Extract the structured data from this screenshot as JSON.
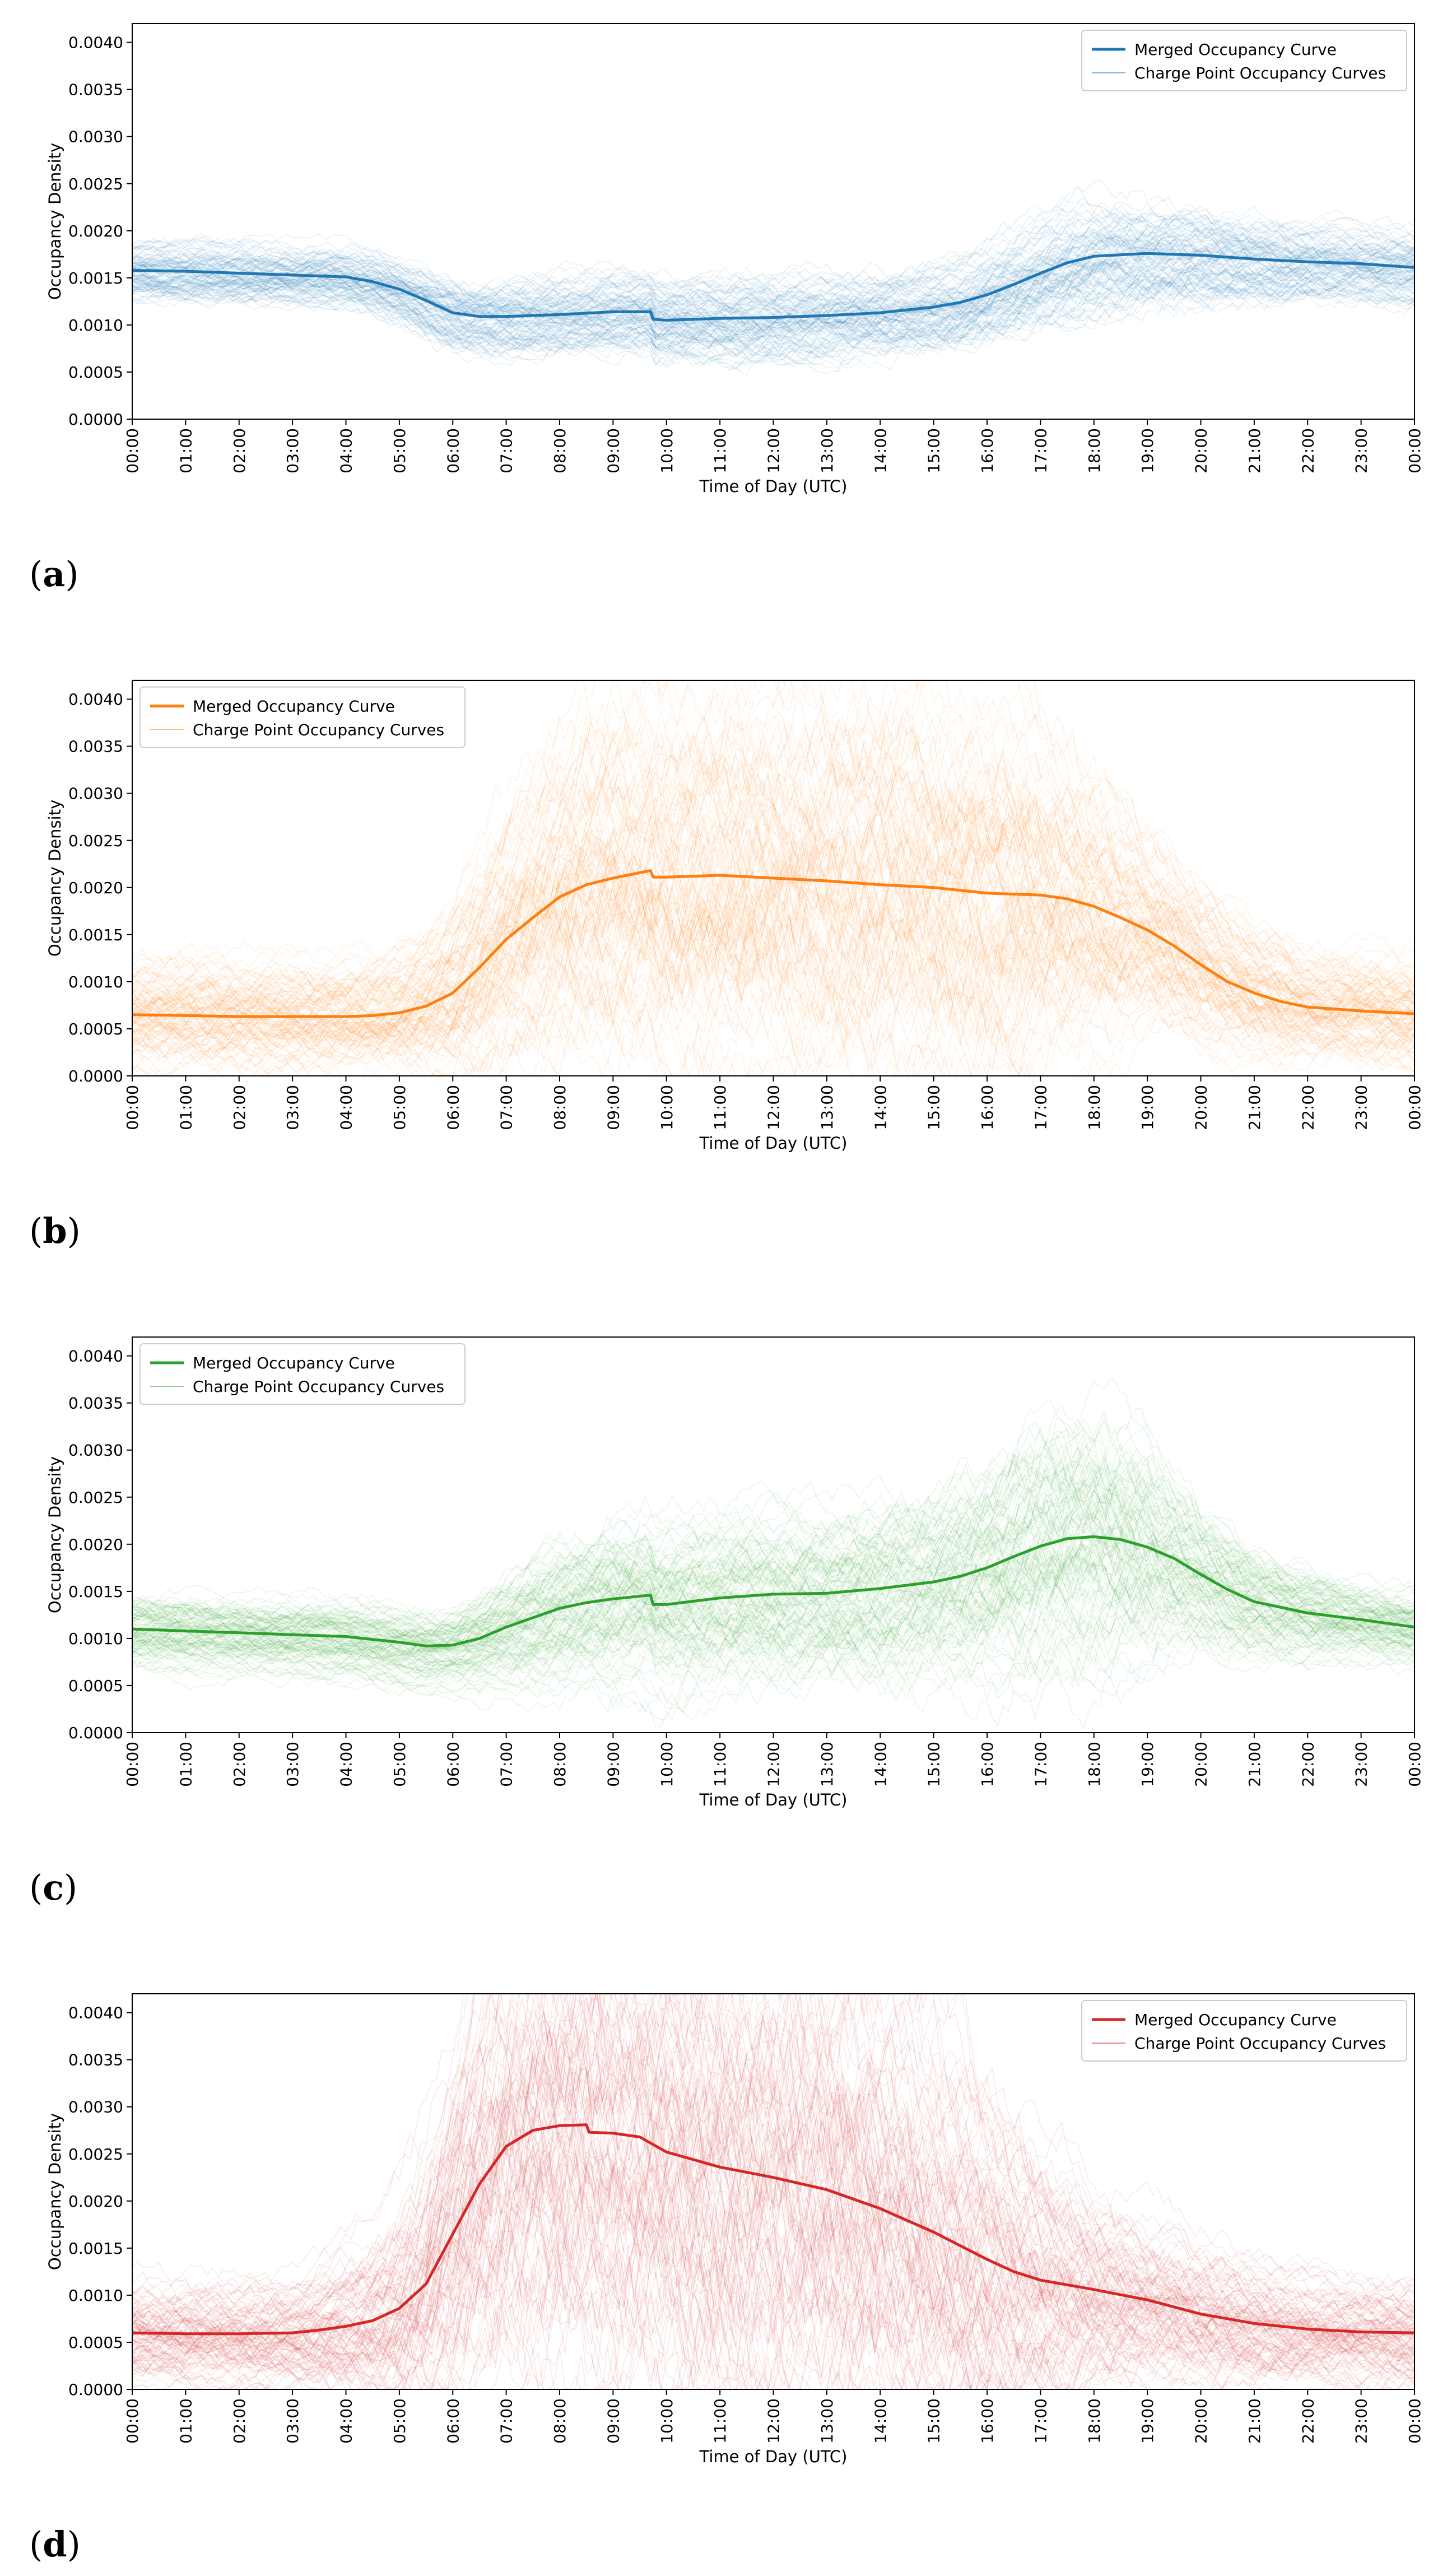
{
  "chart_data": [
    {
      "type": "line",
      "panel_label": "a",
      "xlabel": "Time of Day (UTC)",
      "ylabel": "Occupancy Density",
      "x_ticks": [
        "00:00",
        "01:00",
        "02:00",
        "03:00",
        "04:00",
        "05:00",
        "06:00",
        "07:00",
        "08:00",
        "09:00",
        "10:00",
        "11:00",
        "12:00",
        "13:00",
        "14:00",
        "15:00",
        "16:00",
        "17:00",
        "18:00",
        "19:00",
        "20:00",
        "21:00",
        "22:00",
        "23:00",
        "00:00"
      ],
      "xlim": [
        0,
        24
      ],
      "y_ticks": [
        "0.0000",
        "0.0005",
        "0.0010",
        "0.0015",
        "0.0020",
        "0.0025",
        "0.0030",
        "0.0035",
        "0.0040"
      ],
      "ylim": [
        0,
        0.0042
      ],
      "grid": false,
      "legend_position": "top-right",
      "color": "#1f77b4",
      "series": [
        {
          "name": "Merged Occupancy Curve",
          "x": [
            0,
            1,
            2,
            3,
            4,
            4.5,
            5,
            5.5,
            6,
            6.5,
            7,
            8,
            9,
            9.7,
            9.75,
            10,
            11,
            12,
            13,
            14,
            15,
            15.5,
            16,
            16.5,
            17,
            17.5,
            18,
            19,
            20,
            21,
            22,
            23,
            24
          ],
          "y": [
            0.00158,
            0.00157,
            0.00155,
            0.00153,
            0.00151,
            0.00146,
            0.00138,
            0.00126,
            0.00113,
            0.00109,
            0.00109,
            0.00111,
            0.00114,
            0.00114,
            0.00106,
            0.00105,
            0.00107,
            0.00108,
            0.0011,
            0.00113,
            0.00119,
            0.00124,
            0.00132,
            0.00143,
            0.00155,
            0.00166,
            0.00173,
            0.00176,
            0.00174,
            0.0017,
            0.00167,
            0.00165,
            0.00161
          ]
        },
        {
          "name": "Charge Point Occupancy Curves",
          "spread": [
            0.00035,
            0.00035,
            0.00035,
            0.00035,
            0.00035,
            0.00037,
            0.0004,
            0.00043,
            0.00045,
            0.00045,
            0.00045,
            0.00045,
            0.00045,
            0.00045,
            0.00048,
            0.00048,
            0.00048,
            0.00048,
            0.00048,
            0.00048,
            0.0005,
            0.00052,
            0.00055,
            0.00058,
            0.0006,
            0.00062,
            0.00062,
            0.0006,
            0.00055,
            0.0005,
            0.00045,
            0.00042,
            0.0004
          ]
        }
      ]
    },
    {
      "type": "line",
      "panel_label": "b",
      "xlabel": "Time of Day (UTC)",
      "ylabel": "Occupancy Density",
      "x_ticks": [
        "00:00",
        "01:00",
        "02:00",
        "03:00",
        "04:00",
        "05:00",
        "06:00",
        "07:00",
        "08:00",
        "09:00",
        "10:00",
        "11:00",
        "12:00",
        "13:00",
        "14:00",
        "15:00",
        "16:00",
        "17:00",
        "18:00",
        "19:00",
        "20:00",
        "21:00",
        "22:00",
        "23:00",
        "00:00"
      ],
      "xlim": [
        0,
        24
      ],
      "y_ticks": [
        "0.0000",
        "0.0005",
        "0.0010",
        "0.0015",
        "0.0020",
        "0.0025",
        "0.0030",
        "0.0035",
        "0.0040"
      ],
      "ylim": [
        0,
        0.0042
      ],
      "grid": false,
      "legend_position": "top-left",
      "color": "#ff7f0e",
      "series": [
        {
          "name": "Merged Occupancy Curve",
          "x": [
            0,
            1,
            2,
            3,
            4,
            4.5,
            5,
            5.5,
            6,
            6.5,
            7,
            7.5,
            8,
            8.5,
            9,
            9.7,
            9.75,
            10,
            11,
            12,
            13,
            14,
            15,
            16,
            17,
            17.5,
            18,
            18.5,
            19,
            19.5,
            20,
            20.5,
            21,
            21.5,
            22,
            23,
            24
          ],
          "y": [
            0.00065,
            0.00064,
            0.00063,
            0.00063,
            0.00063,
            0.00064,
            0.00067,
            0.00074,
            0.00088,
            0.00115,
            0.00145,
            0.00168,
            0.0019,
            0.00203,
            0.0021,
            0.00218,
            0.00211,
            0.00211,
            0.00213,
            0.0021,
            0.00207,
            0.00203,
            0.002,
            0.00194,
            0.00192,
            0.00188,
            0.0018,
            0.00168,
            0.00155,
            0.00138,
            0.00118,
            0.001,
            0.00088,
            0.00079,
            0.00073,
            0.00069,
            0.00066
          ]
        },
        {
          "name": "Charge Point Occupancy Curves",
          "spread": [
            0.0006,
            0.0006,
            0.0006,
            0.0006,
            0.0006,
            0.0006,
            0.0007,
            0.0008,
            0.001,
            0.0012,
            0.0014,
            0.0016,
            0.0018,
            0.0019,
            0.002,
            0.002,
            0.002,
            0.002,
            0.0021,
            0.0021,
            0.0021,
            0.0021,
            0.0021,
            0.0021,
            0.0019,
            0.0017,
            0.0015,
            0.0013,
            0.0011,
            0.001,
            0.0009,
            0.0008,
            0.0007,
            0.0007,
            0.0006,
            0.0006,
            0.0006
          ]
        }
      ]
    },
    {
      "type": "line",
      "panel_label": "c",
      "xlabel": "Time of Day (UTC)",
      "ylabel": "Occupancy Density",
      "x_ticks": [
        "00:00",
        "01:00",
        "02:00",
        "03:00",
        "04:00",
        "05:00",
        "06:00",
        "07:00",
        "08:00",
        "09:00",
        "10:00",
        "11:00",
        "12:00",
        "13:00",
        "14:00",
        "15:00",
        "16:00",
        "17:00",
        "18:00",
        "19:00",
        "20:00",
        "21:00",
        "22:00",
        "23:00",
        "00:00"
      ],
      "xlim": [
        0,
        24
      ],
      "y_ticks": [
        "0.0000",
        "0.0005",
        "0.0010",
        "0.0015",
        "0.0020",
        "0.0025",
        "0.0030",
        "0.0035",
        "0.0040"
      ],
      "ylim": [
        0,
        0.0042
      ],
      "grid": false,
      "legend_position": "top-left",
      "color": "#2ca02c",
      "series": [
        {
          "name": "Merged Occupancy Curve",
          "x": [
            0,
            1,
            2,
            3,
            4,
            4.5,
            5,
            5.5,
            6,
            6.5,
            7,
            7.5,
            8,
            8.5,
            9,
            9.7,
            9.75,
            10,
            11,
            12,
            13,
            14,
            15,
            15.5,
            16,
            16.5,
            17,
            17.5,
            18,
            18.5,
            19,
            19.5,
            20,
            20.5,
            21,
            22,
            23,
            24
          ],
          "y": [
            0.0011,
            0.00108,
            0.00106,
            0.00104,
            0.00102,
            0.00099,
            0.00096,
            0.00092,
            0.00093,
            0.001,
            0.00112,
            0.00122,
            0.00132,
            0.00138,
            0.00142,
            0.00146,
            0.00136,
            0.00136,
            0.00143,
            0.00147,
            0.00148,
            0.00153,
            0.0016,
            0.00166,
            0.00175,
            0.00187,
            0.00198,
            0.00206,
            0.00208,
            0.00205,
            0.00197,
            0.00185,
            0.00168,
            0.00152,
            0.00139,
            0.00127,
            0.0012,
            0.00112
          ]
        },
        {
          "name": "Charge Point Occupancy Curves",
          "spread": [
            0.0004,
            0.0004,
            0.0004,
            0.0004,
            0.0004,
            0.0004,
            0.0004,
            0.0004,
            0.0004,
            0.0005,
            0.0006,
            0.0007,
            0.0008,
            0.0008,
            0.0009,
            0.0009,
            0.0009,
            0.0009,
            0.0009,
            0.0009,
            0.0009,
            0.001,
            0.001,
            0.0011,
            0.0012,
            0.0013,
            0.0014,
            0.0014,
            0.0014,
            0.0013,
            0.0012,
            0.001,
            0.0008,
            0.0007,
            0.0006,
            0.0005,
            0.0004,
            0.0004
          ]
        }
      ]
    },
    {
      "type": "line",
      "panel_label": "d",
      "xlabel": "Time of Day (UTC)",
      "ylabel": "Occupancy Density",
      "x_ticks": [
        "00:00",
        "01:00",
        "02:00",
        "03:00",
        "04:00",
        "05:00",
        "06:00",
        "07:00",
        "08:00",
        "09:00",
        "10:00",
        "11:00",
        "12:00",
        "13:00",
        "14:00",
        "15:00",
        "16:00",
        "17:00",
        "18:00",
        "19:00",
        "20:00",
        "21:00",
        "22:00",
        "23:00",
        "00:00"
      ],
      "xlim": [
        0,
        24
      ],
      "y_ticks": [
        "0.0000",
        "0.0005",
        "0.0010",
        "0.0015",
        "0.0020",
        "0.0025",
        "0.0030",
        "0.0035",
        "0.0040"
      ],
      "ylim": [
        0,
        0.0042
      ],
      "grid": false,
      "legend_position": "top-right",
      "color": "#d62728",
      "series": [
        {
          "name": "Merged Occupancy Curve",
          "x": [
            0,
            1,
            2,
            3,
            3.5,
            4,
            4.5,
            5,
            5.5,
            6,
            6.5,
            7,
            7.5,
            8,
            8.5,
            8.55,
            9,
            9.5,
            10,
            11,
            12,
            13,
            14,
            15,
            16,
            16.5,
            17,
            17.5,
            18,
            19,
            20,
            21,
            22,
            23,
            24
          ],
          "y": [
            0.0006,
            0.00059,
            0.00059,
            0.0006,
            0.00063,
            0.00067,
            0.00073,
            0.00086,
            0.00112,
            0.00165,
            0.00218,
            0.00258,
            0.00275,
            0.0028,
            0.00281,
            0.00273,
            0.00272,
            0.00268,
            0.00252,
            0.00236,
            0.00225,
            0.00212,
            0.00192,
            0.00167,
            0.00138,
            0.00125,
            0.00116,
            0.00111,
            0.00106,
            0.00095,
            0.0008,
            0.0007,
            0.00064,
            0.00061,
            0.0006
          ]
        },
        {
          "name": "Charge Point Occupancy Curves",
          "spread": [
            0.0006,
            0.0006,
            0.0006,
            0.0006,
            0.0007,
            0.0008,
            0.001,
            0.0013,
            0.0017,
            0.0022,
            0.0026,
            0.0028,
            0.003,
            0.003,
            0.003,
            0.003,
            0.003,
            0.003,
            0.003,
            0.003,
            0.003,
            0.0029,
            0.0027,
            0.0024,
            0.002,
            0.0017,
            0.0015,
            0.0013,
            0.0011,
            0.0009,
            0.0008,
            0.0007,
            0.0006,
            0.0006,
            0.0006
          ]
        }
      ]
    }
  ]
}
